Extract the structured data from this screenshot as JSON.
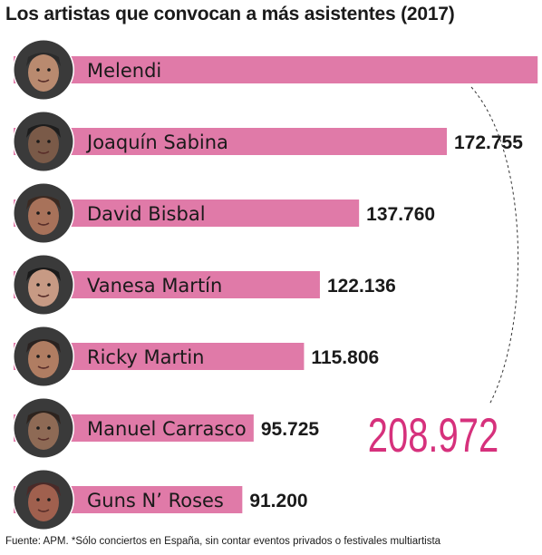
{
  "title": "Los artistas que convocan a más asistentes (2017)",
  "footer": "Fuente: APM. *Sólo conciertos en España, sin contar eventos privados o festivales multiartista",
  "colors": {
    "bar": "#e07aa8",
    "highlight_number": "#d6317c",
    "text": "#1a1a1a",
    "dashed_arc": "#333333"
  },
  "chart_data": {
    "type": "bar",
    "orientation": "horizontal",
    "title": "Los artistas que convocan a más asistentes (2017)",
    "categories": [
      "Melendi",
      "Joaquín Sabina",
      "David Bisbal",
      "Vanesa Martín",
      "Ricky Martin",
      "Manuel Carrasco",
      "Guns N’ Roses"
    ],
    "value_labels": [
      "",
      "172.755",
      "137.760",
      "122.136",
      "115.806",
      "95.725",
      "91.200"
    ],
    "values": [
      208972,
      172755,
      137760,
      122136,
      115806,
      95725,
      91200
    ],
    "highlight": {
      "category": "Melendi",
      "label": "208.972"
    },
    "icons": [
      "portrait-melendi",
      "portrait-joaquin-sabina",
      "portrait-david-bisbal",
      "portrait-vanesa-martin",
      "portrait-ricky-martin",
      "portrait-manuel-carrasco",
      "portrait-guns-n-roses"
    ]
  }
}
